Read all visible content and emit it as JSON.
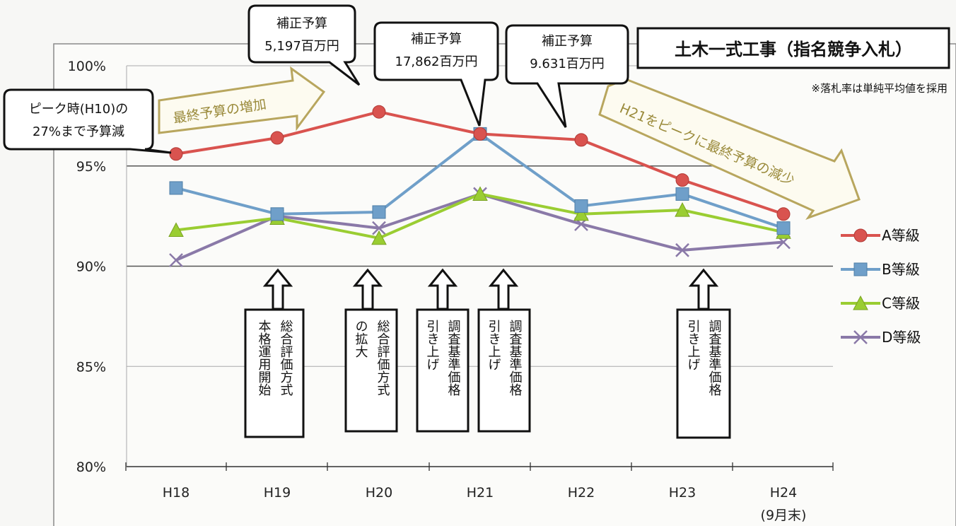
{
  "chart_data": {
    "type": "line",
    "title": "土木一式工事（指名競争入札）",
    "note": "※落札率は単純平均値を採用",
    "categories": [
      "H18",
      "H19",
      "H20",
      "H21",
      "H22",
      "H23",
      "H24"
    ],
    "category_sublabels": [
      "",
      "",
      "",
      "",
      "",
      "",
      "(9月末)"
    ],
    "yticks": [
      "80%",
      "85%",
      "90%",
      "95%",
      "100%"
    ],
    "ylim": [
      80,
      100
    ],
    "grid": true,
    "legend_position": "right",
    "series": [
      {
        "name": "A等級",
        "color": "#d9534f",
        "marker": "circle",
        "values": [
          95.6,
          96.4,
          97.7,
          96.6,
          96.3,
          94.3,
          92.6
        ]
      },
      {
        "name": "B等級",
        "color": "#6f9fc9",
        "marker": "square",
        "values": [
          93.9,
          92.6,
          92.7,
          96.6,
          93.0,
          93.6,
          91.9
        ]
      },
      {
        "name": "C等級",
        "color": "#9acd32",
        "marker": "triangle",
        "values": [
          91.8,
          92.4,
          91.4,
          93.6,
          92.6,
          92.8,
          91.7
        ]
      },
      {
        "name": "D等級",
        "color": "#8a79a8",
        "marker": "x",
        "values": [
          90.3,
          92.5,
          91.9,
          93.6,
          92.1,
          90.8,
          91.2
        ]
      }
    ],
    "callouts": [
      {
        "lines": [
          "ピーク時(H10)の",
          "27%まで予算減"
        ]
      },
      {
        "lines": [
          "補正予算",
          "5,197百万円"
        ]
      },
      {
        "lines": [
          "補正予算",
          "17,862百万円"
        ]
      },
      {
        "lines": [
          "補正予算",
          "9.631百万円"
        ]
      }
    ],
    "trend_arrows": [
      {
        "text": "最終予算の増加"
      },
      {
        "text": "H21をピークに最終予算の減少"
      }
    ],
    "event_boxes": [
      {
        "columns": [
          "総合評価方式",
          "本格運用開始"
        ]
      },
      {
        "columns": [
          "総合評価方式",
          "の拡大"
        ]
      },
      {
        "columns": [
          "調査基準価格",
          "引き上げ"
        ]
      },
      {
        "columns": [
          "調査基準価格",
          "引き上げ"
        ]
      },
      {
        "columns": [
          "調査基準価格",
          "引き上げ"
        ]
      }
    ]
  }
}
